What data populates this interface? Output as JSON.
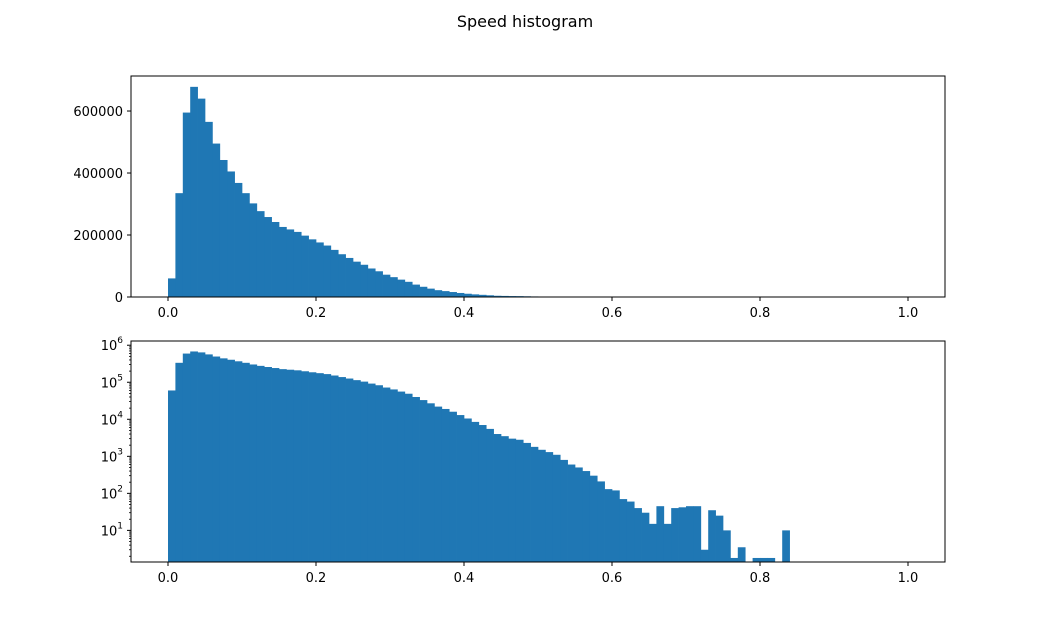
{
  "figure": {
    "suptitle": "Speed histogram"
  },
  "chart_data": [
    {
      "type": "bar",
      "title": "",
      "xlabel": "",
      "ylabel": "",
      "yscale": "linear",
      "grid": false,
      "xlim": [
        -0.05,
        1.05
      ],
      "ylim": [
        0,
        713000
      ],
      "x_ticks": [
        0.0,
        0.2,
        0.4,
        0.6,
        0.8,
        1.0
      ],
      "x_tick_labels": [
        "0.0",
        "0.2",
        "0.4",
        "0.6",
        "0.8",
        "1.0"
      ],
      "y_ticks": [
        0,
        200000,
        400000,
        600000
      ],
      "y_tick_labels": [
        "0",
        "200000",
        "400000",
        "600000"
      ],
      "bin_start": 0.0,
      "bin_width": 0.01,
      "color": "#1f77b4",
      "values": [
        60000,
        335000,
        595000,
        678000,
        640000,
        565000,
        495000,
        442000,
        405000,
        368000,
        335000,
        302000,
        277000,
        258000,
        242000,
        226000,
        218000,
        210000,
        198000,
        186000,
        176000,
        166000,
        152000,
        138000,
        126000,
        114000,
        104000,
        92000,
        83000,
        72000,
        64000,
        56000,
        49000,
        40000,
        33000,
        27000,
        22000,
        19000,
        16000,
        13000,
        10500,
        8500,
        7000,
        5500,
        4000,
        3500,
        3000,
        2800,
        2300,
        1800,
        1500,
        1300,
        1100,
        800,
        600,
        500,
        400,
        300,
        210,
        130,
        120,
        70,
        60,
        40,
        30,
        15,
        45,
        15,
        40,
        42,
        45,
        45,
        3,
        35,
        25,
        10,
        1.8,
        3.5,
        1,
        1.8,
        1.8,
        1.8,
        1,
        10,
        0,
        0,
        0,
        0,
        0,
        0,
        0,
        0,
        0,
        0,
        0,
        0,
        0,
        0,
        0,
        0
      ]
    },
    {
      "type": "bar",
      "title": "",
      "xlabel": "",
      "ylabel": "",
      "yscale": "log",
      "grid": false,
      "xlim": [
        -0.05,
        1.05
      ],
      "ylim": [
        1.4,
        1300000
      ],
      "x_ticks": [
        0.0,
        0.2,
        0.4,
        0.6,
        0.8,
        1.0
      ],
      "x_tick_labels": [
        "0.0",
        "0.2",
        "0.4",
        "0.6",
        "0.8",
        "1.0"
      ],
      "y_ticks": [
        10,
        100,
        1000,
        10000,
        100000,
        1000000
      ],
      "y_tick_bases": [
        "10",
        "10",
        "10",
        "10",
        "10",
        "10"
      ],
      "y_tick_exponents": [
        "1",
        "2",
        "3",
        "4",
        "5",
        "6"
      ],
      "bin_start": 0.0,
      "bin_width": 0.01,
      "color": "#1f77b4",
      "values": [
        60000,
        335000,
        595000,
        678000,
        640000,
        565000,
        495000,
        442000,
        405000,
        368000,
        335000,
        302000,
        277000,
        258000,
        242000,
        226000,
        218000,
        210000,
        198000,
        186000,
        176000,
        166000,
        152000,
        138000,
        126000,
        114000,
        104000,
        92000,
        83000,
        72000,
        64000,
        56000,
        49000,
        40000,
        33000,
        27000,
        22000,
        19000,
        16000,
        13000,
        10500,
        8500,
        7000,
        5500,
        4000,
        3500,
        3000,
        2800,
        2300,
        1800,
        1500,
        1300,
        1100,
        800,
        600,
        500,
        400,
        300,
        210,
        130,
        120,
        70,
        60,
        40,
        30,
        15,
        45,
        15,
        40,
        42,
        45,
        45,
        3,
        35,
        25,
        10,
        1.8,
        3.5,
        1,
        1.8,
        1.8,
        1.8,
        1,
        10,
        0,
        0,
        0,
        0,
        0,
        0,
        0,
        0,
        0,
        0,
        0,
        0,
        0,
        0,
        0,
        0
      ]
    }
  ]
}
